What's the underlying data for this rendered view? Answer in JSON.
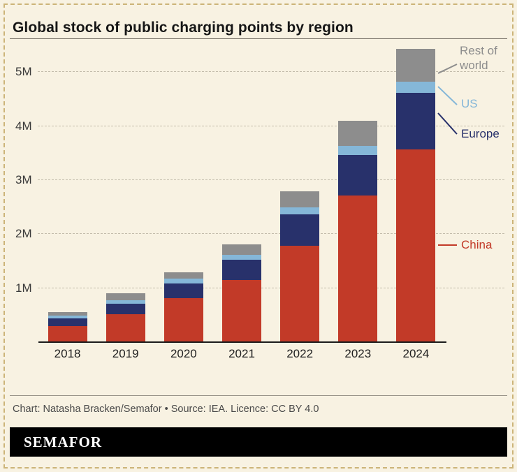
{
  "page": {
    "background": "#f8f2e2",
    "frame_border_color": "#ccb478"
  },
  "header": {
    "title": "Global stock of public charging points by region"
  },
  "chart_data": {
    "type": "bar",
    "stacked": true,
    "title": "Global stock of public charging points by region",
    "unit": "millions of charging points",
    "categories": [
      "2018",
      "2019",
      "2020",
      "2021",
      "2022",
      "2023",
      "2024"
    ],
    "series": [
      {
        "name": "China",
        "color": "#c23a28",
        "values": [
          0.3,
          0.52,
          0.81,
          1.15,
          1.79,
          2.72,
          3.57
        ]
      },
      {
        "name": "Europe",
        "color": "#28316b",
        "values": [
          0.14,
          0.19,
          0.28,
          0.37,
          0.58,
          0.75,
          1.05
        ]
      },
      {
        "name": "US",
        "color": "#85b7d8",
        "values": [
          0.05,
          0.07,
          0.09,
          0.1,
          0.13,
          0.17,
          0.2
        ]
      },
      {
        "name": "Rest of world",
        "color": "#8d8d8d",
        "values": [
          0.07,
          0.12,
          0.12,
          0.19,
          0.3,
          0.46,
          0.61
        ]
      }
    ],
    "totals": [
      0.56,
      0.9,
      1.3,
      1.81,
      2.8,
      4.1,
      5.43
    ],
    "y_ticks": [
      "1M",
      "2M",
      "3M",
      "4M",
      "5M"
    ],
    "ylim": [
      0,
      5.56
    ],
    "grid": "dashed horizontal",
    "legend_position": "right-annotations",
    "legend_order_top_to_bottom": [
      "Rest of world",
      "US",
      "Europe",
      "China"
    ]
  },
  "footer": {
    "credit": "Chart: Natasha Bracken/Semafor • Source: IEA. Licence: CC BY 4.0"
  },
  "brand": {
    "logo_text": "SEMAFOR",
    "background": "#000000",
    "text_color": "#ffffff"
  }
}
